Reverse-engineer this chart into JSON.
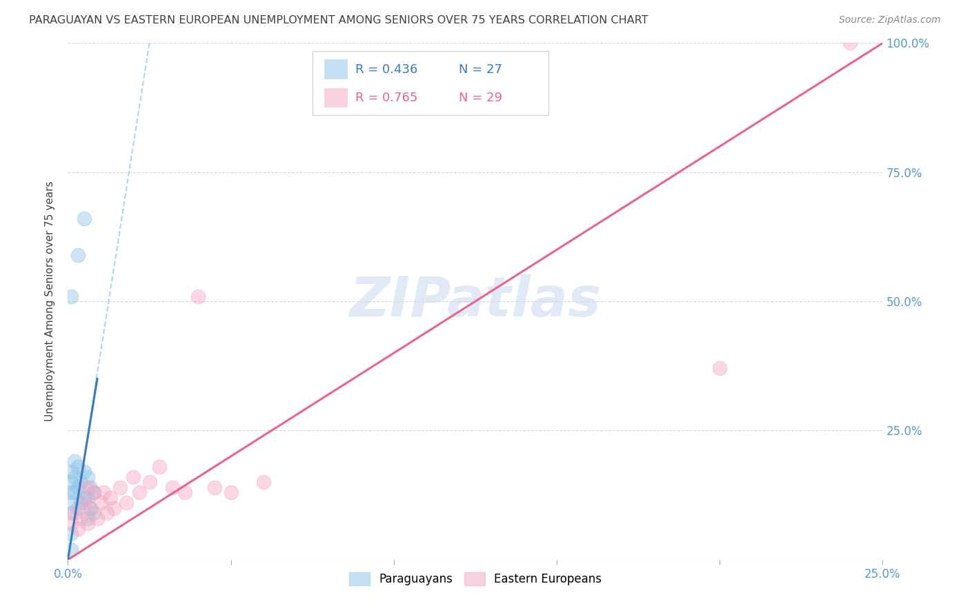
{
  "title": "PARAGUAYAN VS EASTERN EUROPEAN UNEMPLOYMENT AMONG SENIORS OVER 75 YEARS CORRELATION CHART",
  "source": "Source: ZipAtlas.com",
  "ylabel": "Unemployment Among Seniors over 75 years",
  "watermark": "ZIPatlas",
  "blue_R": "0.436",
  "blue_N": "27",
  "pink_R": "0.765",
  "pink_N": "29",
  "xlim": [
    0.0,
    0.25
  ],
  "ylim": [
    0.0,
    1.0
  ],
  "blue_color": "#8ec4e8",
  "pink_color": "#f4a7c0",
  "blue_line_color": "#3a7bbf",
  "pink_line_color": "#e8648c",
  "title_color": "#404040",
  "axis_label_color": "#404040",
  "tick_color": "#5599cc",
  "grid_color": "#cccccc",
  "background_color": "#ffffff",
  "legend_label_blue": "Paraguayans",
  "legend_label_pink": "Eastern Europeans",
  "blue_scatter_x": [
    0.001,
    0.001,
    0.001,
    0.001,
    0.001,
    0.002,
    0.002,
    0.002,
    0.003,
    0.003,
    0.003,
    0.004,
    0.004,
    0.005,
    0.005,
    0.006,
    0.006,
    0.006,
    0.007,
    0.007,
    0.008,
    0.008,
    0.001,
    0.003,
    0.005,
    0.001,
    0.001
  ],
  "blue_scatter_y": [
    0.17,
    0.15,
    0.13,
    0.11,
    0.09,
    0.19,
    0.16,
    0.13,
    0.18,
    0.14,
    0.1,
    0.15,
    0.11,
    0.17,
    0.12,
    0.16,
    0.12,
    0.08,
    0.14,
    0.1,
    0.13,
    0.09,
    0.51,
    0.59,
    0.66,
    0.05,
    0.02
  ],
  "pink_scatter_x": [
    0.001,
    0.002,
    0.003,
    0.004,
    0.005,
    0.006,
    0.006,
    0.007,
    0.008,
    0.009,
    0.01,
    0.011,
    0.012,
    0.013,
    0.014,
    0.016,
    0.018,
    0.02,
    0.022,
    0.025,
    0.028,
    0.032,
    0.036,
    0.04,
    0.045,
    0.05,
    0.06,
    0.2,
    0.24
  ],
  "pink_scatter_y": [
    0.07,
    0.09,
    0.06,
    0.08,
    0.11,
    0.07,
    0.14,
    0.1,
    0.13,
    0.08,
    0.11,
    0.13,
    0.09,
    0.12,
    0.1,
    0.14,
    0.11,
    0.16,
    0.13,
    0.15,
    0.18,
    0.14,
    0.13,
    0.51,
    0.14,
    0.13,
    0.15,
    0.37,
    1.0
  ],
  "blue_solid_line": [
    [
      0.0,
      0.009
    ],
    [
      0.0,
      0.35
    ]
  ],
  "blue_dash_line": [
    [
      0.0,
      0.025
    ],
    [
      0.0,
      1.0
    ]
  ],
  "pink_line": [
    [
      0.0,
      0.25
    ],
    [
      0.0,
      1.0
    ]
  ]
}
